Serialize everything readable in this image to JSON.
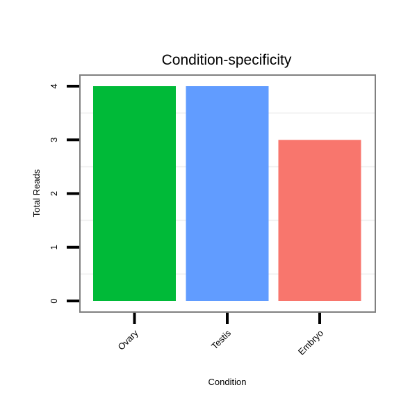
{
  "chart_data": {
    "type": "bar",
    "title": "Condition-specificity",
    "xlabel": "Condition",
    "ylabel": "Total Reads",
    "categories": [
      "Ovary",
      "Testis",
      "Embryo"
    ],
    "values": [
      4,
      4,
      3
    ],
    "colors": [
      "#00BA38",
      "#619CFF",
      "#F8766D"
    ],
    "yticks": [
      0,
      1,
      2,
      3,
      4
    ],
    "ylim": [
      -0.25,
      4.2
    ],
    "grid": true,
    "legend": "none"
  }
}
